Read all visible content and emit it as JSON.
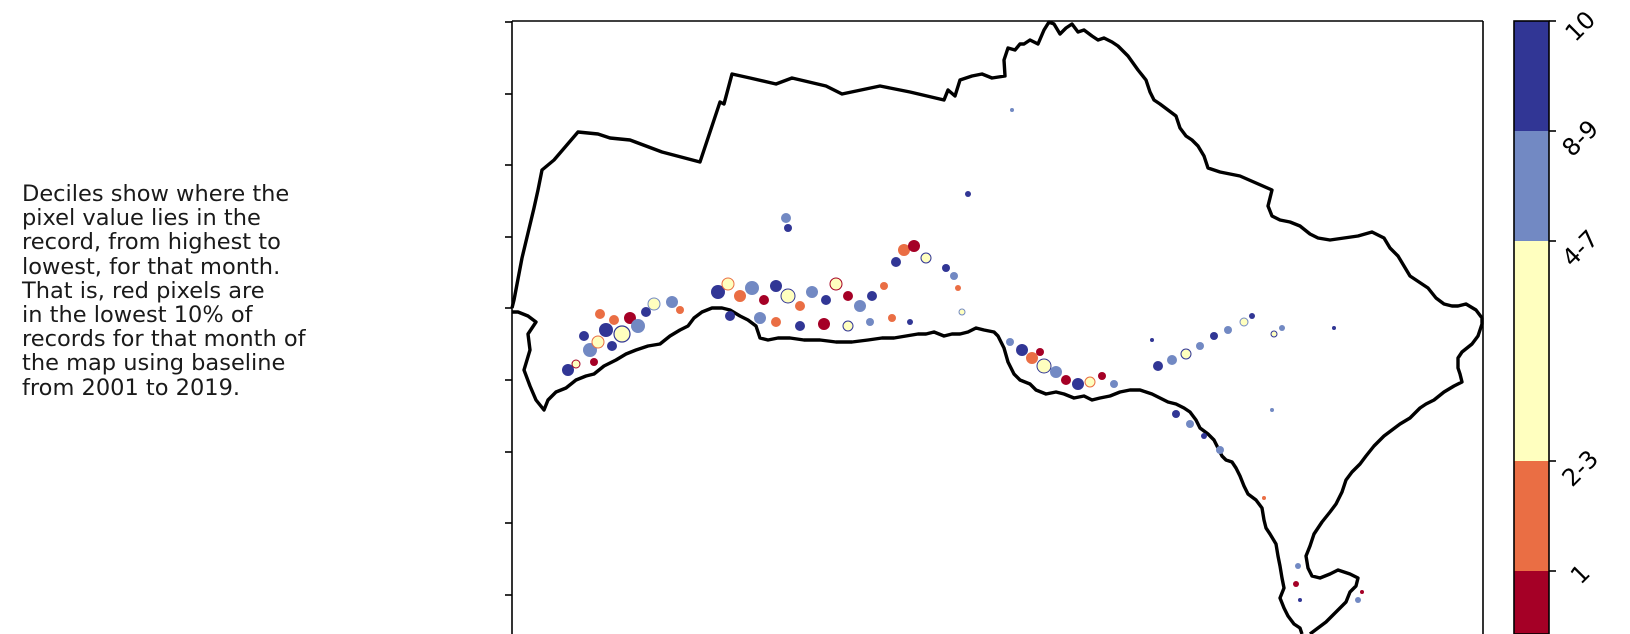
{
  "caption": {
    "lines": [
      "Deciles show where the",
      "pixel value lies in the",
      "record, from highest to",
      "lowest, for that month.",
      "That is, red pixels are",
      "in the lowest 10% of",
      "records for that month of",
      "the map using baseline",
      "from 2001 to 2019."
    ]
  },
  "legend": {
    "classes": [
      {
        "label": "10",
        "color": "#313695"
      },
      {
        "label": "8-9",
        "color": "#7289c3"
      },
      {
        "label": "4-7",
        "color": "#ffffbf"
      },
      {
        "label": "2-3",
        "color": "#ea6e44"
      },
      {
        "label": "1",
        "color": "#a50026"
      }
    ]
  },
  "colors": {
    "boundary": "#000000",
    "background": "#ffffff"
  }
}
